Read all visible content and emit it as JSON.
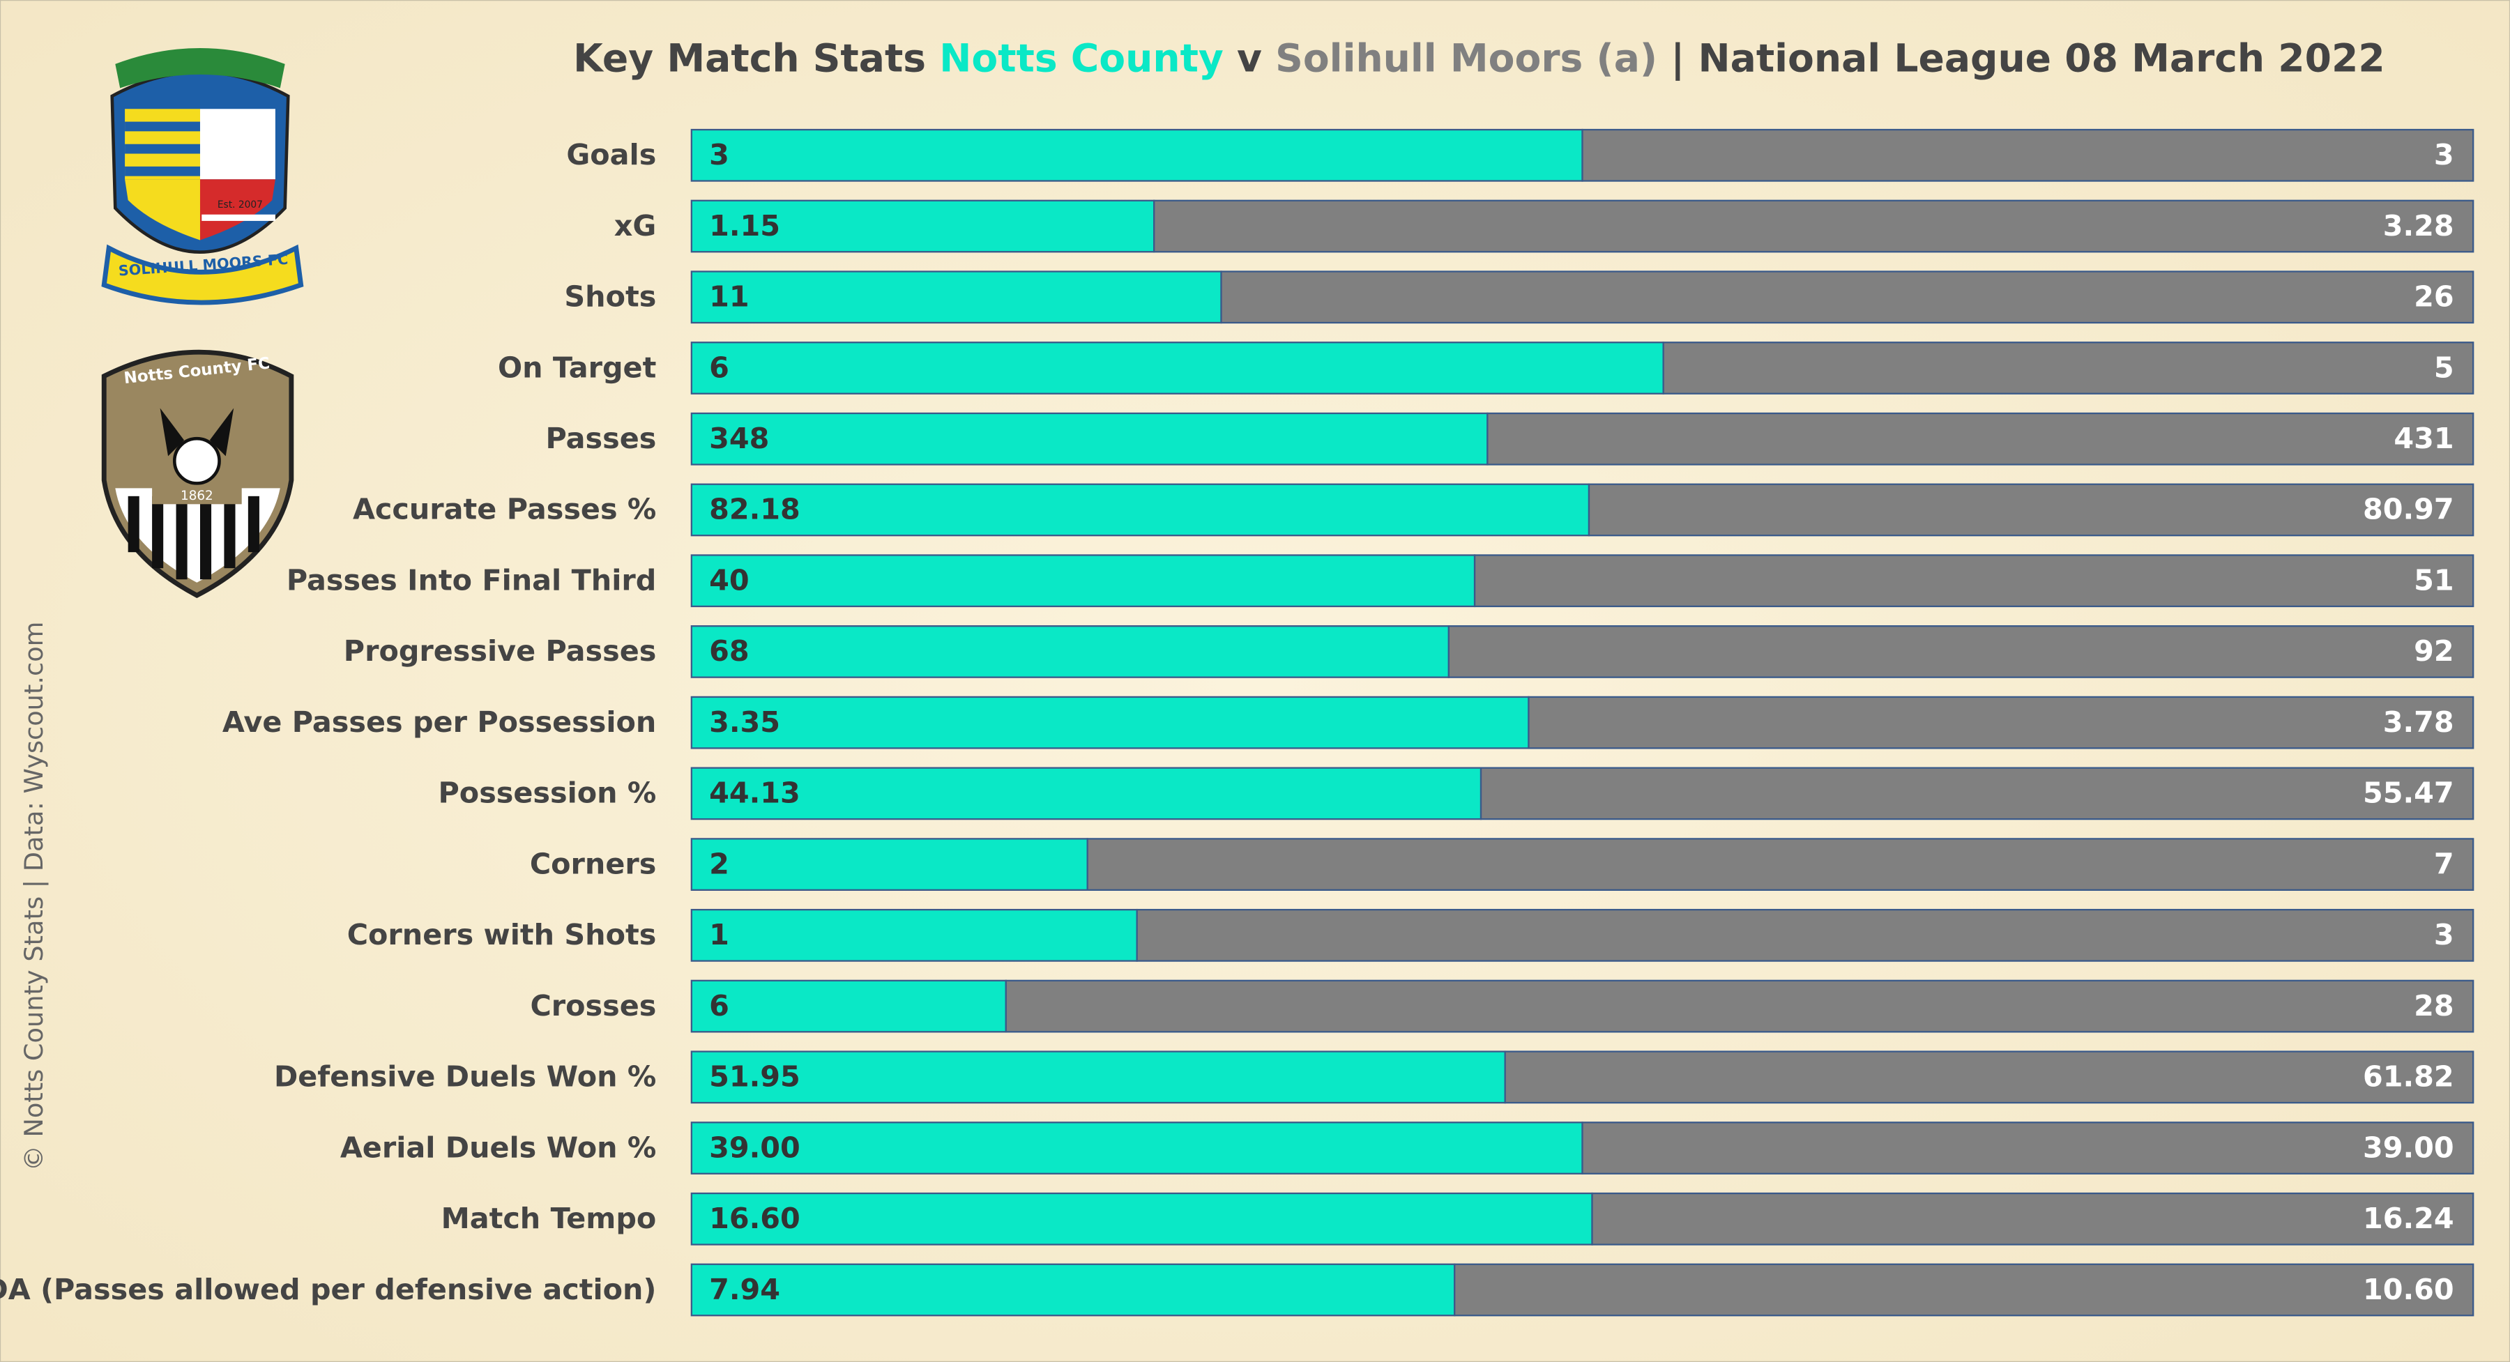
{
  "chart_data": {
    "type": "stacked_bar_100",
    "title_prefix": "Key Match Stats",
    "title_joiner": "v",
    "title_suffix": "| National League 08 March 2022",
    "credit": "© Notts County Stats | Data: Wyscout.com",
    "logos": {
      "solihull": [
        "SOLIHULL MOORS FC",
        "Est. 2007"
      ],
      "notts": [
        "Notts County FC",
        "1862"
      ]
    },
    "categories": [
      "Goals",
      "xG",
      "Shots",
      "On Target",
      "Passes",
      "Accurate Passes %",
      "Passes Into Final Third",
      "Progressive Passes",
      "Ave Passes per Possession",
      "Possession %",
      "Corners",
      "Corners with Shots",
      "Crosses",
      "Defensive Duels Won %",
      "Aerial Duels Won %",
      "Match Tempo",
      "PPDA (Passes allowed per defensive action)"
    ],
    "series": [
      {
        "name": "Notts County",
        "color": "#0ae8c6",
        "values": [
          3,
          1.15,
          11,
          6,
          348,
          82.18,
          40,
          68,
          3.35,
          44.13,
          2,
          1,
          6,
          51.95,
          39,
          16.6,
          7.94
        ],
        "value_labels": [
          "3",
          "1.15",
          "11",
          "6",
          "348",
          "82.18",
          "40",
          "68",
          "3.35",
          "44.13",
          "2",
          "1",
          "6",
          "51.95",
          "39.00",
          "16.60",
          "7.94"
        ]
      },
      {
        "name": "Solihull Moors (a)",
        "color": "#808080",
        "values": [
          3,
          3.28,
          26,
          5,
          431,
          80.97,
          51,
          92,
          3.78,
          55.47,
          7,
          3,
          28,
          61.82,
          39,
          16.24,
          10.6
        ],
        "value_labels": [
          "3",
          "3.28",
          "26",
          "5",
          "431",
          "80.97",
          "51",
          "92",
          "3.78",
          "55.47",
          "7",
          "3",
          "28",
          "61.82",
          "39.00",
          "16.24",
          "10.60"
        ]
      }
    ]
  }
}
